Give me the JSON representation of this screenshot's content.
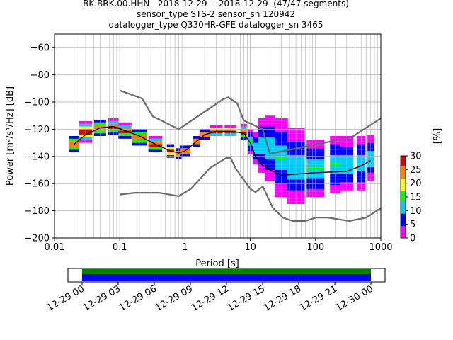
{
  "title_lines": [
    "BK.BRK.00.HHN   2018-12-29 -- 2018-12-29  (47/47 segments)",
    "sensor_type STS-2 sensor_sn 120942",
    "datalogger_type Q330HR-GFE datalogger_sn 3465"
  ],
  "chart_data": [
    {
      "type": "heatmap",
      "xlabel": "Period [s]",
      "ylabel": "Power [m²/s⁴/Hz] [dB]",
      "x_scale": "log",
      "xlim": [
        0.01,
        1000
      ],
      "ylim": [
        -200,
        -50
      ],
      "x_ticks": [
        "0.01",
        "0.1",
        "1",
        "10",
        "100",
        "1000"
      ],
      "y_ticks": [
        -200,
        -180,
        -160,
        -140,
        -120,
        -100,
        -80,
        -60
      ],
      "grid": true,
      "noise_model_high": {
        "period": [
          0.1,
          0.22,
          0.32,
          0.8,
          3.8,
          4.6,
          6.3,
          7.9,
          15.4,
          20,
          354.8,
          1000
        ],
        "db": [
          -91.5,
          -97.4,
          -110.5,
          -120,
          -98,
          -96.5,
          -101,
          -113.5,
          -120,
          -138,
          -126,
          -112
        ]
      },
      "noise_model_low": {
        "period": [
          0.1,
          0.17,
          0.4,
          0.8,
          1.24,
          2.4,
          4.3,
          5,
          6,
          10,
          12,
          15.6,
          21.9,
          31.6,
          45,
          70,
          101,
          154,
          328,
          600,
          1000
        ],
        "db": [
          -168,
          -166.7,
          -166.7,
          -169.2,
          -163.7,
          -148.6,
          -141.1,
          -141.1,
          -149,
          -163.8,
          -166.2,
          -162.1,
          -177.5,
          -185,
          -187.5,
          -187.5,
          -185,
          -185,
          -187.5,
          -185,
          -178
        ]
      },
      "mean_curve": {
        "period": [
          0.02,
          0.03,
          0.05,
          0.08,
          0.12,
          0.2,
          0.35,
          0.6,
          0.8,
          1.0,
          1.5,
          2.0,
          3.0,
          5.0,
          8.0,
          10,
          12,
          15,
          20,
          30,
          50,
          100,
          300,
          500,
          700
        ],
        "db": [
          -131,
          -124,
          -119,
          -118,
          -121,
          -125,
          -131,
          -136,
          -137.5,
          -136,
          -129,
          -124,
          -121.5,
          -121.5,
          -123,
          -130,
          -140,
          -146,
          -150,
          -154,
          -153,
          -152,
          -151,
          -147,
          -143
        ]
      },
      "ppsd_bins": [
        {
          "period": 0.02,
          "db_low": -137,
          "db_high": -125
        },
        {
          "period": 0.03,
          "db_low": -130,
          "db_high": -114
        },
        {
          "period": 0.05,
          "db_low": -125,
          "db_high": -113
        },
        {
          "period": 0.08,
          "db_low": -124,
          "db_high": -113
        },
        {
          "period": 0.12,
          "db_low": -127,
          "db_high": -116
        },
        {
          "period": 0.2,
          "db_low": -132,
          "db_high": -120
        },
        {
          "period": 0.35,
          "db_low": -137,
          "db_high": -126
        },
        {
          "period": 0.6,
          "db_low": -141,
          "db_high": -131
        },
        {
          "period": 0.8,
          "db_low": -142,
          "db_high": -134
        },
        {
          "period": 1.0,
          "db_low": -140,
          "db_high": -132
        },
        {
          "period": 1.5,
          "db_low": -133,
          "db_high": -125
        },
        {
          "period": 2.0,
          "db_low": -128,
          "db_high": -120
        },
        {
          "period": 3.0,
          "db_low": -125,
          "db_high": -118
        },
        {
          "period": 5.0,
          "db_low": -125,
          "db_high": -118
        },
        {
          "period": 8.0,
          "db_low": -128,
          "db_high": -117
        },
        {
          "period": 10,
          "db_low": -138,
          "db_high": -120
        },
        {
          "period": 12,
          "db_low": -146,
          "db_high": -123
        },
        {
          "period": 15,
          "db_low": -152,
          "db_high": -112
        },
        {
          "period": 20,
          "db_low": -158,
          "db_high": -110
        },
        {
          "period": 30,
          "db_low": -170,
          "db_high": -112
        },
        {
          "period": 50,
          "db_low": -175,
          "db_high": -120
        },
        {
          "period": 100,
          "db_low": -170,
          "db_high": -128
        },
        {
          "period": 200,
          "db_low": -167,
          "db_high": -125
        },
        {
          "period": 300,
          "db_low": -165,
          "db_high": -126
        },
        {
          "period": 500,
          "db_low": -165,
          "db_high": -125
        },
        {
          "period": 700,
          "db_low": -158,
          "db_high": -125
        }
      ]
    },
    {
      "type": "colorbar",
      "label": "[%]",
      "range": [
        0,
        30
      ],
      "ticks": [
        0,
        5,
        10,
        15,
        20,
        25,
        30
      ],
      "colormap": [
        "#ff00ff",
        "#0000ff",
        "#00ccff",
        "#00ff00",
        "#ffff00",
        "#ff8000",
        "#e00000"
      ]
    },
    {
      "type": "timeline",
      "x_ticks": [
        "12-29 00",
        "12-29 03",
        "12-29 06",
        "12-29 09",
        "12-29 12",
        "12-29 15",
        "12-29 18",
        "12-29 21",
        "12-30 00"
      ],
      "coverage_colors": [
        "#008000",
        "#0000ff"
      ],
      "coverage_start_hour": 0,
      "coverage_end_hour": 24
    }
  ]
}
